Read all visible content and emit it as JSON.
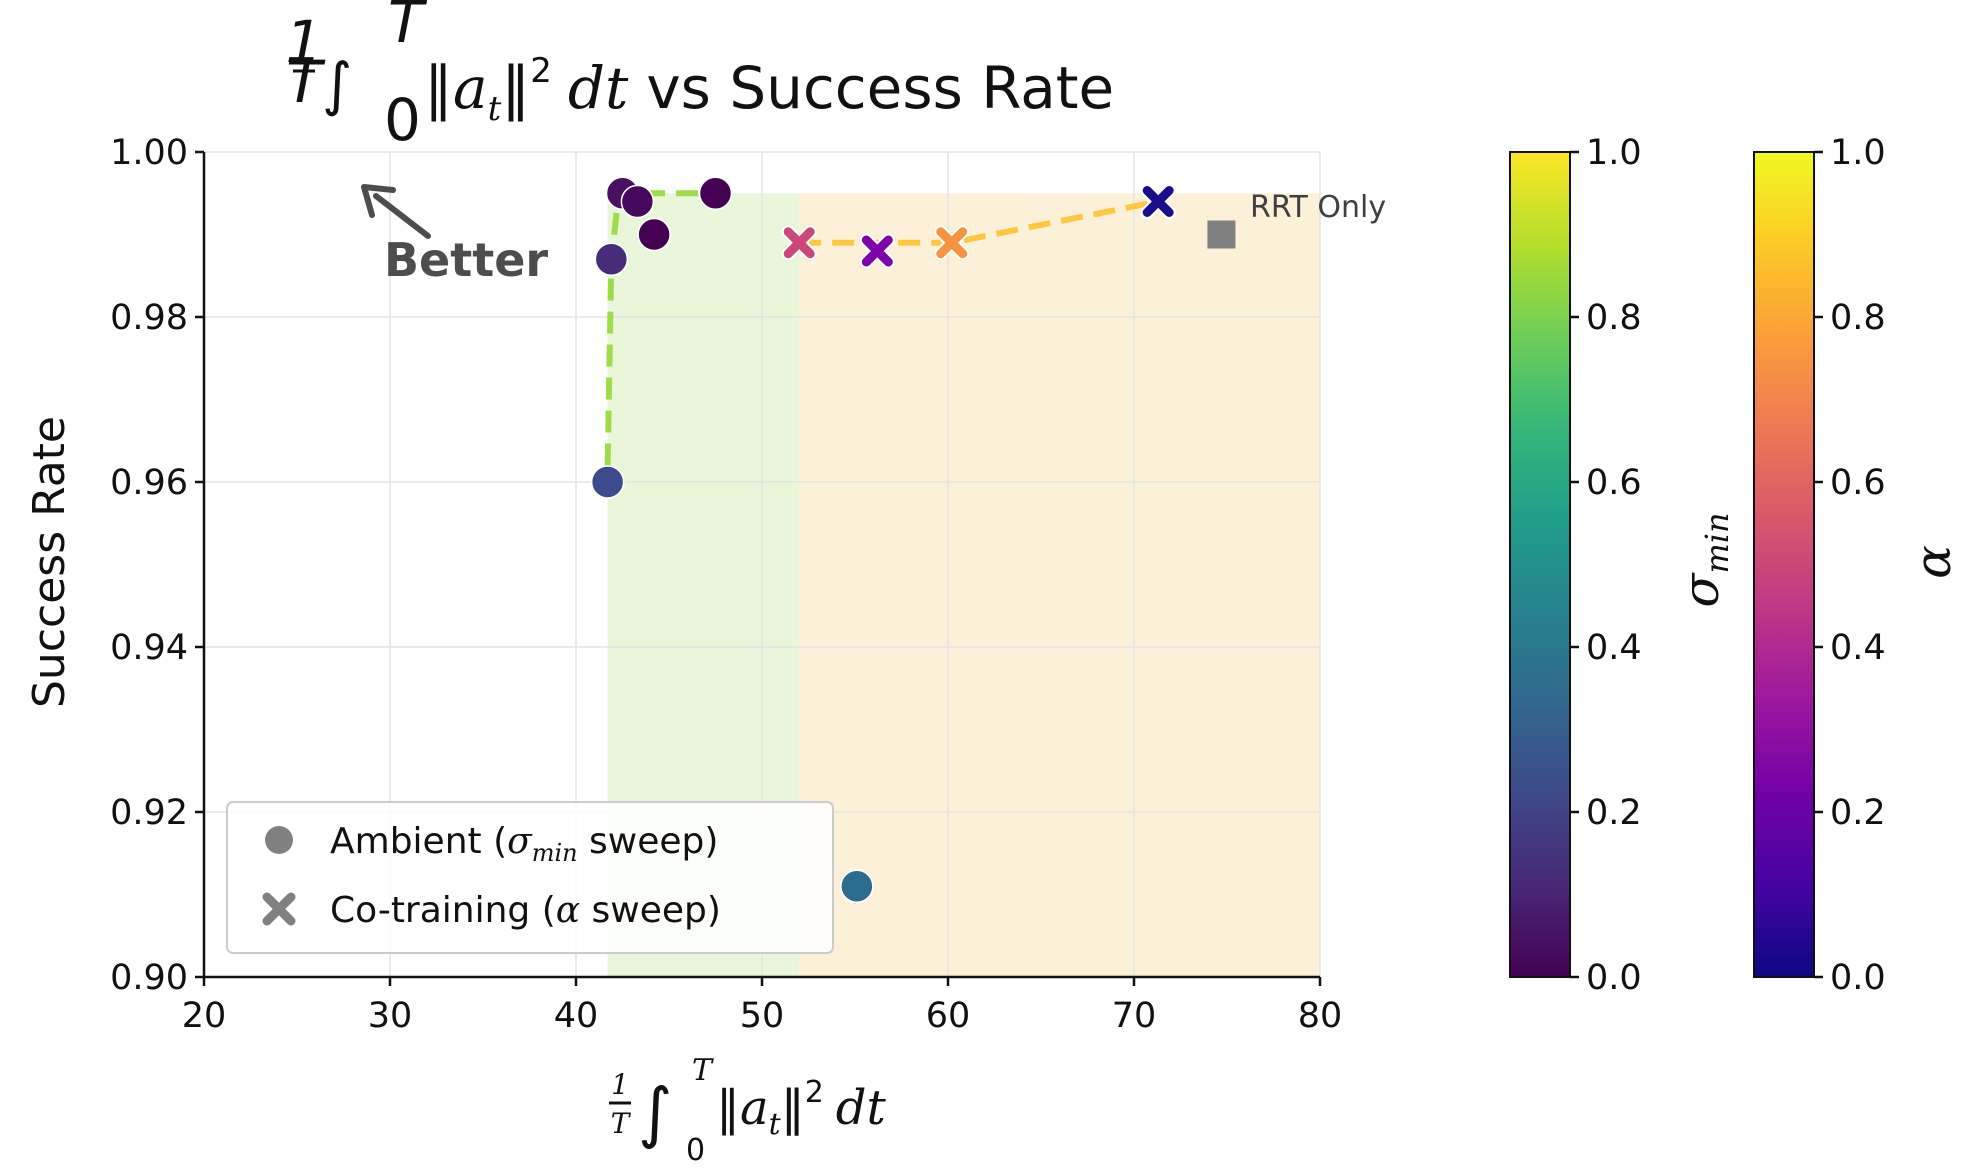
{
  "chart_data": {
    "type": "scatter",
    "title": {
      "frac_num": "1",
      "frac_den": "T",
      "integral": "∫",
      "upper": "T",
      "lower": "0",
      "expr_start": "‖a",
      "expr_sub": "t",
      "expr_end": "‖",
      "sup": "2",
      "dt": "dt",
      "suffix": "vs Success Rate"
    },
    "xlabel": {
      "frac_num": "1",
      "frac_den": "T",
      "integral": "∫",
      "upper": "T",
      "lower": "0",
      "expr_start": "‖a",
      "expr_sub": "t",
      "expr_end": "‖",
      "sup": "2",
      "dt": "dt"
    },
    "ylabel": "Success Rate",
    "xlim": [
      20,
      80
    ],
    "ylim": [
      0.9,
      1.0
    ],
    "xticks": [
      "20",
      "30",
      "40",
      "50",
      "60",
      "70",
      "80"
    ],
    "yticks": [
      "0.90",
      "0.92",
      "0.94",
      "0.96",
      "0.98",
      "1.00"
    ],
    "grid": true,
    "shaded_regions": [
      {
        "name": "ambient-frontier",
        "x0": 41.7,
        "x1": 52.0,
        "y0": 0.9,
        "y1": 0.995,
        "color": "#e9f6d9"
      },
      {
        "name": "cotraining-frontier",
        "x0": 52.0,
        "x1": 80.0,
        "y0": 0.9,
        "y1": 0.995,
        "color": "#fdf0d8"
      }
    ],
    "series": [
      {
        "name": "Ambient (σmin sweep)",
        "marker": "circle",
        "points": [
          {
            "x": 41.7,
            "y": 0.96,
            "color": "#3b4b8d"
          },
          {
            "x": 41.9,
            "y": 0.987,
            "color": "#472c7a"
          },
          {
            "x": 42.5,
            "y": 0.995,
            "color": "#471063"
          },
          {
            "x": 43.3,
            "y": 0.994,
            "color": "#46085c"
          },
          {
            "x": 44.2,
            "y": 0.99,
            "color": "#440154"
          },
          {
            "x": 47.5,
            "y": 0.995,
            "color": "#440154"
          },
          {
            "x": 55.1,
            "y": 0.911,
            "color": "#2c6d8e"
          }
        ],
        "frontier": {
          "color": "#9fdc4a",
          "x": [
            41.7,
            41.9,
            42.3,
            42.5,
            47.5
          ],
          "y": [
            0.962,
            0.987,
            0.995,
            0.995,
            0.995
          ]
        }
      },
      {
        "name": "Co-training (α sweep)",
        "marker": "x",
        "points": [
          {
            "x": 52.0,
            "y": 0.989,
            "color": "#cc4778"
          },
          {
            "x": 56.2,
            "y": 0.988,
            "color": "#7e03a8"
          },
          {
            "x": 60.2,
            "y": 0.989,
            "color": "#f89441"
          },
          {
            "x": 71.3,
            "y": 0.994,
            "color": "#1a0b8a"
          }
        ],
        "frontier": {
          "color": "#fdc840",
          "x": [
            52.0,
            56.2,
            60.2,
            71.3
          ],
          "y": [
            0.989,
            0.989,
            0.989,
            0.994
          ]
        }
      },
      {
        "name": "RRT Only",
        "marker": "square",
        "points": [
          {
            "x": 74.7,
            "y": 0.99,
            "color": "#808080"
          }
        ]
      }
    ],
    "annotations": [
      {
        "text": "RRT Only",
        "x": 75.8,
        "y": 0.991
      },
      {
        "text": "Better",
        "x": 28.5,
        "y": 0.9955
      }
    ],
    "legend": {
      "position": "lower-left",
      "entries": [
        {
          "marker": "circle",
          "prefix": "Ambient (",
          "symbol": "σ",
          "sub": "min",
          "suffix": " sweep)"
        },
        {
          "marker": "x",
          "prefix": "Co-training (",
          "symbol": "α",
          "sub": "",
          "suffix": " sweep)"
        }
      ]
    },
    "colorbars": [
      {
        "name": "sigma-min-colorbar",
        "symbol": "σ",
        "sub": "min",
        "range": [
          0.0,
          1.0
        ],
        "ticks": [
          "0.0",
          "0.2",
          "0.4",
          "0.6",
          "0.8",
          "1.0"
        ],
        "colormap": "viridis",
        "stops": [
          "#440154",
          "#482878",
          "#3e4989",
          "#31688e",
          "#26828e",
          "#1f9e89",
          "#35b779",
          "#6ece58",
          "#b5de2b",
          "#fde725"
        ]
      },
      {
        "name": "alpha-colorbar",
        "symbol": "α",
        "sub": "",
        "range": [
          0.0,
          1.0
        ],
        "ticks": [
          "0.0",
          "0.2",
          "0.4",
          "0.6",
          "0.8",
          "1.0"
        ],
        "colormap": "plasma",
        "stops": [
          "#0d0887",
          "#46039f",
          "#7201a8",
          "#9c179e",
          "#bd3786",
          "#d8576b",
          "#ed7953",
          "#fb9f3a",
          "#fdca26",
          "#f0f921"
        ]
      }
    ]
  }
}
